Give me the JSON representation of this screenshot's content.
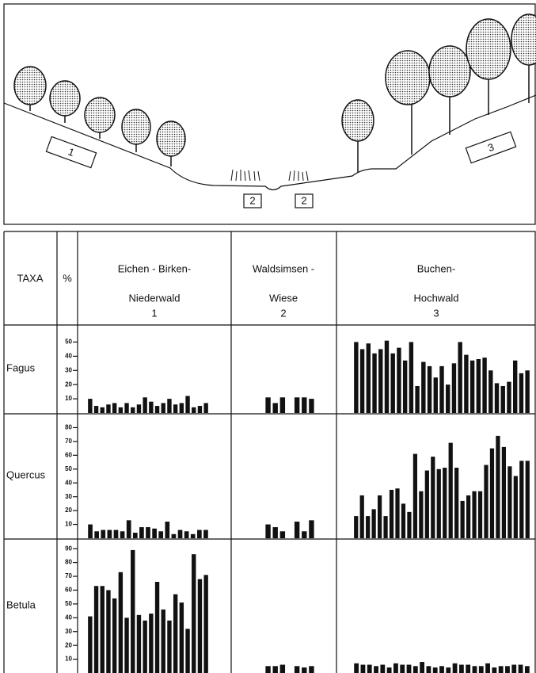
{
  "landscape": {
    "labels": [
      "1",
      "2",
      "2",
      "3"
    ]
  },
  "table": {
    "header": {
      "taxa": "TAXA",
      "unit": "%",
      "columns": [
        {
          "lines": [
            "Eichen - Birken-",
            "Niederwald"
          ],
          "number": "1"
        },
        {
          "lines": [
            "Waldsimsen -",
            "Wiese"
          ],
          "number": "2"
        },
        {
          "lines": [
            "Buchen-",
            "Hochwald"
          ],
          "number": "3"
        }
      ]
    },
    "rows": [
      {
        "taxon": "Fagus",
        "ylim": [
          0,
          62
        ],
        "yticks": [
          10,
          20,
          30,
          40,
          50
        ],
        "bars": [
          [
            10,
            5,
            4,
            6,
            7,
            4,
            7,
            4,
            6,
            11,
            8,
            5,
            7,
            10,
            6,
            7,
            12,
            4,
            5,
            7
          ],
          [
            11,
            7,
            11,
            null,
            11,
            11,
            10
          ],
          [
            50,
            45,
            49,
            42,
            45,
            51,
            42,
            46,
            37,
            50,
            19,
            36,
            33,
            25,
            33,
            20,
            35,
            50,
            41,
            37,
            38,
            39,
            30,
            21,
            19,
            22,
            37,
            28,
            30
          ]
        ]
      },
      {
        "taxon": "Quercus",
        "ylim": [
          0,
          90
        ],
        "yticks": [
          10,
          20,
          30,
          40,
          50,
          60,
          70,
          80
        ],
        "bars": [
          [
            10,
            5,
            6,
            6,
            6,
            5,
            13,
            4,
            8,
            8,
            7,
            5,
            12,
            3,
            6,
            5,
            3,
            6,
            6
          ],
          [
            10,
            8,
            5,
            null,
            12,
            5,
            13
          ],
          [
            16,
            31,
            16,
            21,
            31,
            16,
            35,
            36,
            25,
            19,
            61,
            34,
            49,
            59,
            50,
            51,
            69,
            51,
            27,
            31,
            34,
            34,
            53,
            65,
            74,
            66,
            52,
            45,
            56,
            56
          ]
        ]
      },
      {
        "taxon": "Betula",
        "ylim": [
          0,
          97
        ],
        "yticks": [
          10,
          20,
          30,
          40,
          50,
          60,
          70,
          80,
          90
        ],
        "bars": [
          [
            41,
            63,
            63,
            60,
            54,
            73,
            40,
            89,
            42,
            38,
            43,
            66,
            46,
            38,
            57,
            51,
            32,
            86,
            68,
            71
          ],
          [
            5,
            5,
            6,
            null,
            5,
            4,
            5
          ],
          [
            7,
            6,
            6,
            5,
            6,
            4,
            7,
            6,
            6,
            5,
            8,
            5,
            4,
            5,
            4,
            7,
            6,
            6,
            5,
            5,
            7,
            4,
            5,
            5,
            6,
            6,
            5
          ]
        ]
      }
    ]
  }
}
